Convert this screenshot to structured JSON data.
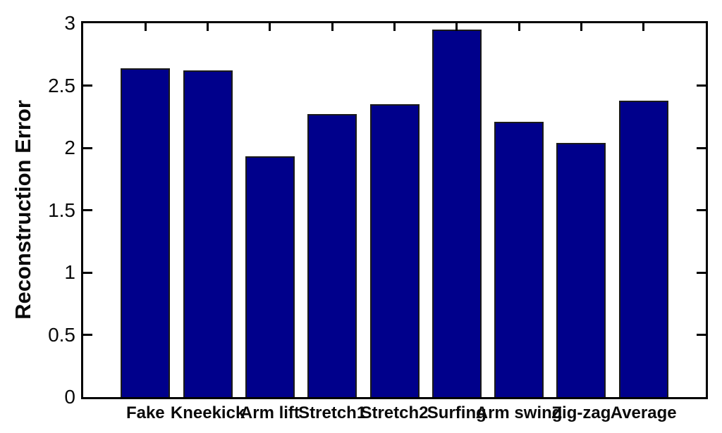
{
  "chart_data": {
    "type": "bar",
    "title": "",
    "xlabel": "",
    "ylabel": "Reconstruction Error",
    "categories": [
      "Fake",
      "Kneekick",
      "Arm lift",
      "Stretch1",
      "Stretch2",
      "Surfing",
      "Arm swing",
      "Zig-zag",
      "Average"
    ],
    "values": [
      2.64,
      2.62,
      1.93,
      2.27,
      2.35,
      2.95,
      2.21,
      2.04,
      2.38
    ],
    "ylim": [
      0,
      3
    ],
    "yticks": [
      0,
      0.5,
      1,
      1.5,
      2,
      2.5,
      3
    ],
    "ytick_labels": [
      "0",
      "0.5",
      "1",
      "1.5",
      "2",
      "2.5",
      "3"
    ],
    "grid": false,
    "legend": null,
    "bar_color": "#00008B",
    "bar_edge_color": "#1a1a1a",
    "axis_color": "#000000",
    "text_color": "#0a0a0a",
    "background_color": "#ffffff"
  }
}
